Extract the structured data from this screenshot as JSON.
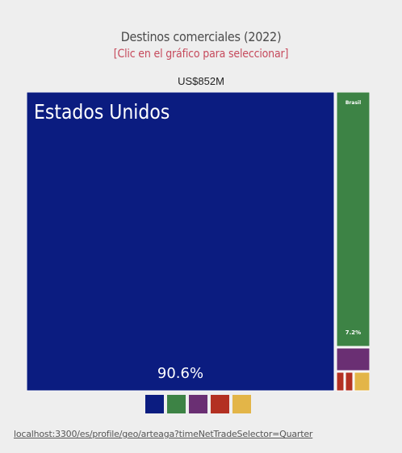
{
  "header": {
    "title": "Destinos comerciales (2022)",
    "subtitle": "[Clic en el gráfico para seleccionar]",
    "total": "US$852M"
  },
  "chart_data": {
    "type": "treemap",
    "items": [
      {
        "name": "Estados Unidos",
        "share": 90.6,
        "label": "90.6%",
        "color": "#0b1c80"
      },
      {
        "name": "Brasil",
        "share": 7.2,
        "label": "7.2%",
        "color": "#3d8345"
      },
      {
        "name": "",
        "share": 1.0,
        "label": "",
        "color": "#6a2f73"
      },
      {
        "name": "",
        "share": 0.4,
        "label": "",
        "color": "#b33022"
      },
      {
        "name": "",
        "share": 0.3,
        "label": "",
        "color": "#b33022"
      },
      {
        "name": "",
        "share": 0.5,
        "label": "",
        "color": "#e3b548"
      }
    ],
    "legend": [
      {
        "color": "#0b1c80",
        "icon": "north-america-icon"
      },
      {
        "color": "#3d8345",
        "icon": "south-america-icon"
      },
      {
        "color": "#6a2f73",
        "icon": "europe-icon"
      },
      {
        "color": "#b33022",
        "icon": "asia-icon"
      },
      {
        "color": "#e3b548",
        "icon": "africa-icon"
      }
    ]
  },
  "footer": {
    "url": "localhost:3300/es/profile/geo/arteaga?timeNetTradeSelector=Quarter"
  }
}
